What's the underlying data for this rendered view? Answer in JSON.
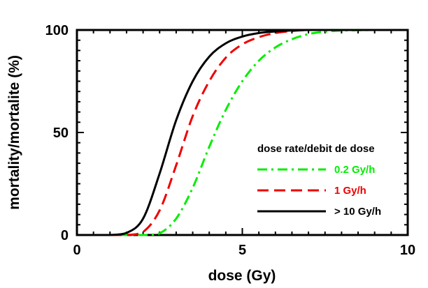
{
  "chart_data": {
    "type": "line",
    "title": "",
    "xlabel": "dose (Gy)",
    "ylabel": "mortality/mortalite (%)",
    "xlim": [
      0,
      10
    ],
    "ylim": [
      0,
      100
    ],
    "xticks": [
      0,
      5,
      10
    ],
    "yticks": [
      0,
      50,
      100
    ],
    "grid": false,
    "legend_title": "dose rate/debit de dose",
    "legend_position": "right",
    "x": [
      0,
      0.5,
      1,
      1.5,
      2,
      2.5,
      3,
      3.5,
      4,
      4.5,
      5,
      5.5,
      6,
      6.5,
      7,
      7.5,
      8,
      8.5,
      9,
      9.5,
      10
    ],
    "series": [
      {
        "name": "0.2 Gy/h",
        "color": "#00ee00",
        "style": "dashdot",
        "values": [
          0,
          0,
          0,
          0,
          0,
          0.8,
          8,
          23,
          43,
          61,
          75,
          85,
          91.5,
          95.5,
          98,
          99.2,
          99.7,
          99.9,
          100,
          100,
          100
        ]
      },
      {
        "name": "1 Gy/h",
        "color": "#ee0000",
        "style": "dashed",
        "values": [
          0,
          0,
          0,
          0,
          1.5,
          12,
          34,
          58,
          75,
          86.5,
          93,
          96.5,
          98.5,
          99.5,
          100,
          100,
          100,
          100,
          100,
          100,
          100
        ]
      },
      {
        "name": "> 10 Gy/h",
        "color": "#000000",
        "style": "solid",
        "values": [
          0,
          0,
          0,
          1,
          8,
          30,
          56,
          75,
          87,
          93.5,
          96.8,
          98.5,
          99.3,
          99.8,
          100,
          100,
          100,
          100,
          100,
          100,
          100
        ]
      }
    ]
  }
}
